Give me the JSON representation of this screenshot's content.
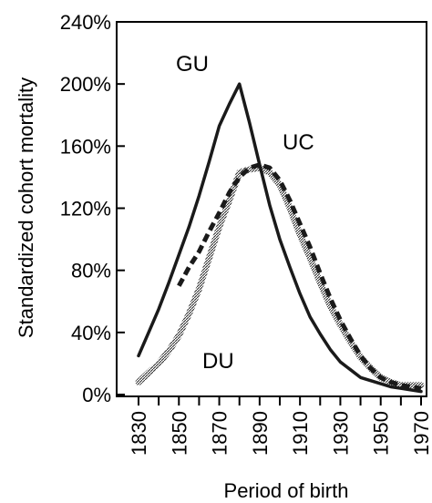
{
  "chart_data": {
    "type": "line",
    "title": "",
    "xlabel": "Period of birth",
    "ylabel": "Standardized cohort mortality",
    "xlim": [
      1830,
      1970
    ],
    "ylim": [
      0,
      240
    ],
    "y_ticks": [
      0,
      40,
      80,
      120,
      160,
      200,
      240
    ],
    "y_tick_labels": [
      "0%",
      "40%",
      "80%",
      "120%",
      "160%",
      "200%",
      "240%"
    ],
    "x_ticks": [
      1830,
      1850,
      1870,
      1890,
      1910,
      1930,
      1950,
      1970
    ],
    "x_tick_labels": [
      "1830",
      "1850",
      "1870",
      "1890",
      "1910",
      "1930",
      "1950",
      "1970"
    ],
    "x_minor_step": 10,
    "grid": false,
    "legend": "none",
    "series": [
      {
        "name": "GU",
        "style": "solid",
        "color": "#1a1a1a",
        "x": [
          1830,
          1835,
          1840,
          1845,
          1850,
          1855,
          1860,
          1865,
          1870,
          1875,
          1880,
          1885,
          1890,
          1895,
          1900,
          1905,
          1910,
          1915,
          1920,
          1925,
          1930,
          1935,
          1940,
          1945,
          1950,
          1955,
          1960,
          1965,
          1970
        ],
        "values": [
          25,
          40,
          55,
          72,
          90,
          108,
          128,
          150,
          173,
          187,
          200,
          175,
          148,
          122,
          100,
          82,
          65,
          50,
          39,
          29,
          21,
          16,
          11,
          9,
          7,
          5,
          4,
          3,
          2
        ]
      },
      {
        "name": "UC",
        "style": "dashed",
        "color": "#1a1a1a",
        "x": [
          1850,
          1855,
          1860,
          1865,
          1870,
          1875,
          1880,
          1885,
          1890,
          1895,
          1900,
          1905,
          1910,
          1915,
          1920,
          1925,
          1930,
          1935,
          1940,
          1945,
          1950,
          1955,
          1960,
          1965,
          1970
        ],
        "values": [
          70,
          82,
          92,
          105,
          117,
          130,
          140,
          146,
          148,
          146,
          138,
          125,
          110,
          95,
          78,
          62,
          48,
          36,
          25,
          17,
          11,
          8,
          6,
          5,
          4
        ]
      },
      {
        "name": "DU",
        "style": "hatched",
        "color": "#555555",
        "x": [
          1830,
          1835,
          1840,
          1845,
          1850,
          1855,
          1860,
          1865,
          1870,
          1875,
          1880,
          1885,
          1890,
          1895,
          1900,
          1905,
          1910,
          1915,
          1920,
          1925,
          1930,
          1935,
          1940,
          1945,
          1950,
          1955,
          1960,
          1965,
          1970
        ],
        "values": [
          8,
          14,
          20,
          28,
          38,
          52,
          68,
          88,
          108,
          125,
          143,
          145,
          146,
          143,
          135,
          120,
          103,
          88,
          72,
          57,
          45,
          34,
          24,
          17,
          11,
          8,
          6,
          6,
          6
        ]
      }
    ]
  }
}
